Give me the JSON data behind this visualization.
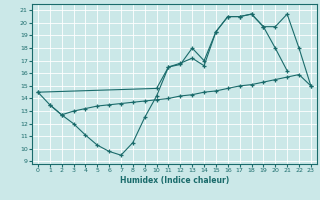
{
  "xlabel": "Humidex (Indice chaleur)",
  "bg_color": "#cbe8e8",
  "line_color": "#1a6b6b",
  "grid_color": "#ffffff",
  "xlim": [
    -0.5,
    23.5
  ],
  "ylim": [
    8.8,
    21.5
  ],
  "yticks": [
    9,
    10,
    11,
    12,
    13,
    14,
    15,
    16,
    17,
    18,
    19,
    20,
    21
  ],
  "xticks": [
    0,
    1,
    2,
    3,
    4,
    5,
    6,
    7,
    8,
    9,
    10,
    11,
    12,
    13,
    14,
    15,
    16,
    17,
    18,
    19,
    20,
    21,
    22,
    23
  ],
  "s0x": [
    0,
    1,
    2,
    3,
    4,
    5,
    6,
    7,
    8,
    9,
    10,
    11,
    12,
    13,
    14,
    15,
    16,
    17,
    18,
    19,
    20,
    21
  ],
  "s0y": [
    14.5,
    13.5,
    12.7,
    12.0,
    11.1,
    10.3,
    9.8,
    9.5,
    10.5,
    12.5,
    14.2,
    16.5,
    16.7,
    18.0,
    17.0,
    19.3,
    20.5,
    20.5,
    20.7,
    19.7,
    18.0,
    16.2
  ],
  "s1x": [
    1,
    2,
    3,
    4,
    5,
    6,
    7,
    8,
    9,
    10,
    11,
    12,
    13,
    14,
    15,
    16,
    17,
    18,
    19,
    20,
    21,
    22,
    23
  ],
  "s1y": [
    13.5,
    12.7,
    13.0,
    13.2,
    13.4,
    13.5,
    13.6,
    13.7,
    13.8,
    13.9,
    14.0,
    14.2,
    14.3,
    14.5,
    14.6,
    14.8,
    15.0,
    15.1,
    15.3,
    15.5,
    15.7,
    15.9,
    15.0
  ],
  "s2x": [
    0,
    10,
    11,
    12,
    13,
    14,
    15,
    16,
    17,
    18,
    19,
    20,
    21,
    22,
    23
  ],
  "s2y": [
    14.5,
    14.8,
    16.5,
    16.8,
    17.2,
    16.6,
    19.3,
    20.5,
    20.5,
    20.7,
    19.7,
    19.7,
    20.7,
    18.0,
    15.0
  ]
}
